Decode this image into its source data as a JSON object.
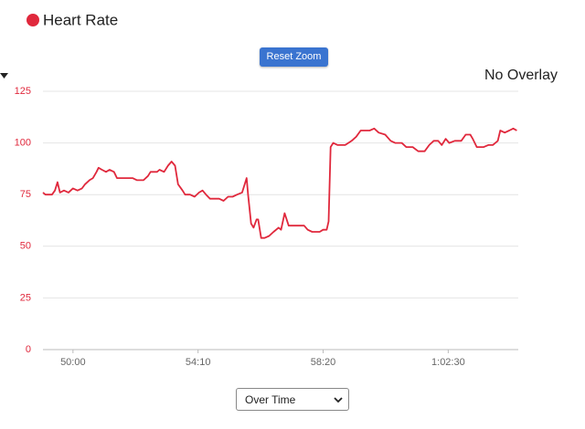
{
  "chart_data": {
    "type": "line",
    "x": [
      2940,
      2945,
      2958,
      2964,
      2969,
      2974,
      2982,
      2991,
      3000,
      3009,
      3018,
      3024,
      3033,
      3040,
      3047,
      3051,
      3058,
      3066,
      3073,
      3082,
      3088,
      3100,
      3119,
      3128,
      3141,
      3150,
      3155,
      3168,
      3173,
      3182,
      3190,
      3197,
      3204,
      3210,
      3219,
      3224,
      3234,
      3243,
      3252,
      3259,
      3266,
      3274,
      3292,
      3301,
      3310,
      3319,
      3328,
      3338,
      3347,
      3350,
      3356,
      3361,
      3367,
      3370,
      3376,
      3383,
      3392,
      3401,
      3411,
      3416,
      3423,
      3431,
      3447,
      3462,
      3469,
      3478,
      3493,
      3500,
      3507,
      3511,
      3515,
      3520,
      3529,
      3544,
      3557,
      3566,
      3575,
      3593,
      3602,
      3611,
      3624,
      3635,
      3644,
      3657,
      3666,
      3679,
      3690,
      3703,
      3712,
      3721,
      3730,
      3737,
      3745,
      3752,
      3763,
      3776,
      3785,
      3794,
      3799,
      3807,
      3821,
      3830,
      3839,
      3849,
      3854,
      3863,
      3872,
      3880,
      3887
    ],
    "series": [
      {
        "name": "Heart Rate",
        "color": "#e0283c",
        "values": [
          76,
          75,
          75,
          77,
          81,
          76,
          77,
          76,
          78,
          77,
          78,
          80,
          82,
          83,
          86,
          88,
          87,
          86,
          87,
          86,
          83,
          83,
          83,
          82,
          82,
          84,
          86,
          86,
          87,
          86,
          89,
          91,
          89,
          80,
          77,
          75,
          75,
          74,
          76,
          77,
          75,
          73,
          73,
          72,
          74,
          74,
          75,
          76,
          83,
          75,
          61,
          59,
          63,
          63,
          54,
          54,
          55,
          57,
          59,
          58,
          66,
          60,
          60,
          60,
          58,
          57,
          57,
          58,
          58,
          62,
          98,
          100,
          99,
          99,
          101,
          103,
          106,
          106,
          107,
          105,
          104,
          101,
          100,
          100,
          98,
          98,
          96,
          96,
          99,
          101,
          101,
          99,
          102,
          100,
          101,
          101,
          104,
          104,
          102,
          98,
          98,
          99,
          99,
          101,
          106,
          105,
          106,
          107,
          106
        ]
      }
    ],
    "xlim": [
      2940,
      3890
    ],
    "xticks": [
      {
        "value": 3000,
        "label": "50:00"
      },
      {
        "value": 3250,
        "label": "54:10"
      },
      {
        "value": 3500,
        "label": "58:20"
      },
      {
        "value": 3750,
        "label": "1:02:30"
      }
    ],
    "ylim": [
      0,
      125
    ],
    "yticks": [
      0,
      25,
      50,
      75,
      100,
      125
    ],
    "grid": true
  },
  "ui": {
    "reset_button": "Reset Zoom",
    "overlay_menu": "No Overlay",
    "mode_select": "Over Time"
  }
}
